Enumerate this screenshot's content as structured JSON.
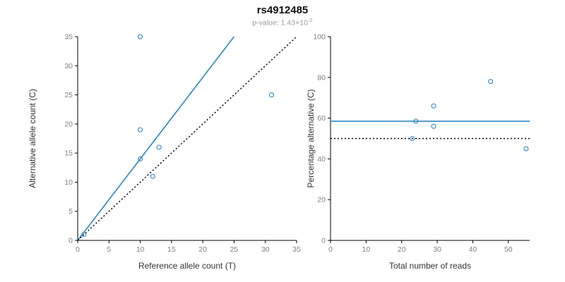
{
  "header": {
    "title": "rs4912485",
    "subtitle_prefix": "p-value: ",
    "subtitle_value": "1.43×10",
    "subtitle_exponent": "-2"
  },
  "colors": {
    "accent": "#2E86C1",
    "axis": "#000000",
    "tick_label": "#808080",
    "dotted_line": "#000000"
  },
  "chart_data": [
    {
      "type": "scatter",
      "title": "",
      "xlabel": "Reference allele count (T)",
      "ylabel": "Alternative allele count (C)",
      "xlim": [
        0,
        35
      ],
      "ylim": [
        0,
        35
      ],
      "xticks": [
        0,
        5,
        10,
        15,
        20,
        25,
        30,
        35
      ],
      "yticks": [
        0,
        5,
        10,
        15,
        20,
        25,
        30,
        35
      ],
      "grid": false,
      "points": [
        [
          1,
          1
        ],
        [
          10,
          14
        ],
        [
          10,
          19
        ],
        [
          10,
          35
        ],
        [
          12,
          11
        ],
        [
          13,
          16
        ],
        [
          31,
          25
        ]
      ],
      "lines": [
        {
          "name": "fit-line",
          "style": "solid",
          "color": "#2E86C1",
          "x1": 0,
          "y1": 0,
          "x2": 25,
          "y2": 35
        },
        {
          "name": "identity-line",
          "style": "dotted",
          "color": "#000000",
          "x1": 0,
          "y1": 0,
          "x2": 35,
          "y2": 35
        }
      ]
    },
    {
      "type": "scatter",
      "title": "",
      "xlabel": "Total number of reads",
      "ylabel": "Percentage alternative (C)",
      "xlim": [
        0,
        56
      ],
      "ylim": [
        0,
        100
      ],
      "xticks": [
        0,
        10,
        20,
        30,
        40,
        50
      ],
      "yticks": [
        0,
        20,
        40,
        60,
        80,
        100
      ],
      "grid": false,
      "points": [
        [
          23,
          50
        ],
        [
          24,
          58.5
        ],
        [
          29,
          66
        ],
        [
          29,
          56
        ],
        [
          45,
          78
        ],
        [
          55,
          45
        ]
      ],
      "lines": [
        {
          "name": "mean-line",
          "style": "solid",
          "color": "#2E86C1",
          "x1": 0,
          "y1": 58.5,
          "x2": 56,
          "y2": 58.5
        },
        {
          "name": "expected-line",
          "style": "dotted",
          "color": "#000000",
          "x1": 0,
          "y1": 50,
          "x2": 56,
          "y2": 50
        }
      ]
    }
  ]
}
